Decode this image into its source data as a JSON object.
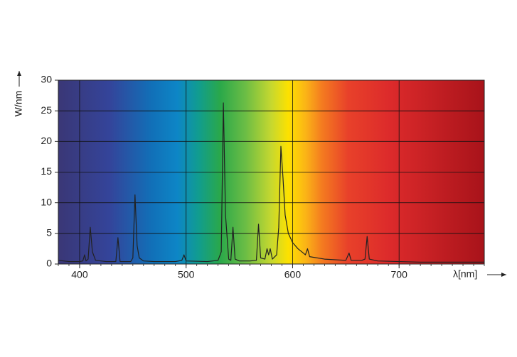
{
  "chart_data": {
    "type": "line",
    "x_label": "λ[nm]",
    "y_label": "W/nm",
    "xlim": [
      380,
      780
    ],
    "ylim": [
      0,
      30
    ],
    "xticks": [
      400,
      500,
      600,
      700
    ],
    "yticks": [
      0,
      5,
      10,
      15,
      20,
      25,
      30
    ],
    "grid": true,
    "series": [
      {
        "color": "#222222",
        "x": [
          380,
          390,
          400,
          403,
          404.7,
          406,
          408,
          410,
          412,
          415,
          425,
          434,
          436,
          438,
          448,
          450,
          452,
          454,
          456,
          460,
          470,
          490,
          496,
          498,
          500,
          520,
          530,
          533,
          535,
          537,
          540,
          542,
          544,
          546,
          550,
          560,
          566,
          568,
          570,
          574,
          576,
          577.5,
          579,
          581,
          585,
          587,
          589,
          591,
          593,
          596,
          600,
          605,
          610,
          612,
          614,
          616,
          630,
          650,
          653,
          655,
          665,
          668,
          670,
          672,
          680,
          700,
          720,
          760,
          780
        ],
        "values": [
          0.6,
          0.4,
          0.4,
          0.5,
          1.5,
          0.5,
          0.8,
          6,
          2,
          0.6,
          0.4,
          0.4,
          4.3,
          0.4,
          0.4,
          1,
          11.3,
          3,
          1,
          0.5,
          0.4,
          0.4,
          0.6,
          1.5,
          0.5,
          0.4,
          0.6,
          2,
          26.3,
          8,
          0.8,
          0.6,
          6,
          0.8,
          0.5,
          0.5,
          0.6,
          6.5,
          1,
          0.8,
          2.5,
          1.5,
          2.5,
          0.8,
          1.5,
          6,
          19.2,
          14,
          8,
          5,
          3.5,
          2.5,
          1.8,
          1.5,
          2.5,
          1.2,
          0.8,
          0.6,
          1.8,
          0.6,
          0.6,
          0.8,
          4.5,
          0.8,
          0.5,
          0.4,
          0.3,
          0.3,
          0.3
        ]
      }
    ]
  }
}
